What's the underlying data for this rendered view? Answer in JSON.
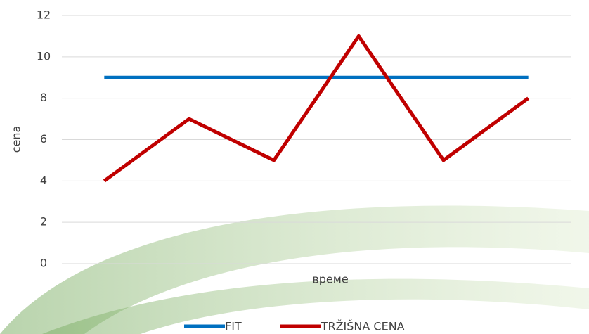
{
  "chart_data": {
    "type": "line",
    "x_label": "време",
    "y_label": "cena",
    "categories": [
      null,
      null,
      null,
      null,
      null,
      null
    ],
    "series": [
      {
        "name": "FIT",
        "color": "#0070c0",
        "values": [
          9,
          9,
          9,
          9,
          9,
          9
        ]
      },
      {
        "name": "TRŽIŠNA CENA",
        "color": "#c00000",
        "values": [
          4,
          7,
          5,
          11,
          5,
          8
        ]
      }
    ],
    "ylim": [
      0,
      12
    ],
    "yticks": [
      0,
      2,
      4,
      6,
      8,
      10,
      12
    ],
    "grid": true,
    "legend": "bottom"
  }
}
